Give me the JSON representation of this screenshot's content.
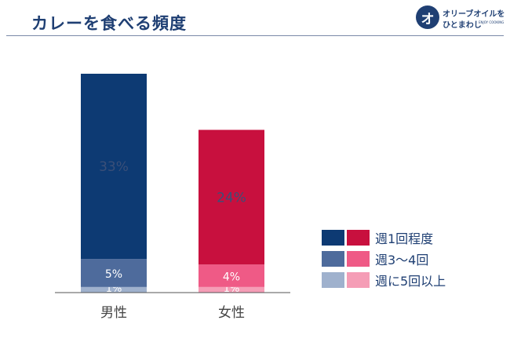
{
  "title": "カレーを食べる頻度",
  "logo": {
    "mark": "オ",
    "line1": "オリーブオイルを",
    "line2": "ひとまわし",
    "line3": "ENJOY COOKING"
  },
  "colors": {
    "男性": [
      "#9fb1cd",
      "#4e6b9c",
      "#0d3a73"
    ],
    "女性": [
      "#f59db6",
      "#ef5a86",
      "#c8103e"
    ],
    "label_text": "#3a4f78",
    "axis": "#555555",
    "rule": "#7a8aa8"
  },
  "chart_data": {
    "type": "bar",
    "stacked": true,
    "categories": [
      "男性",
      "女性"
    ],
    "series": [
      {
        "name": "週に5回以上",
        "values": [
          1,
          1
        ],
        "labels": [
          "1%",
          "1%"
        ]
      },
      {
        "name": "週3〜4回",
        "values": [
          5,
          4
        ],
        "labels": [
          "5%",
          "4%"
        ]
      },
      {
        "name": "週1回程度",
        "values": [
          33,
          24
        ],
        "labels": [
          "33%",
          "24%"
        ]
      }
    ],
    "legend_order": [
      "週1回程度",
      "週3〜4回",
      "週に5回以上"
    ],
    "legend_position": "right",
    "title": "",
    "xlabel": "",
    "ylabel": "",
    "ylim": [
      0,
      39
    ],
    "grid": false
  }
}
